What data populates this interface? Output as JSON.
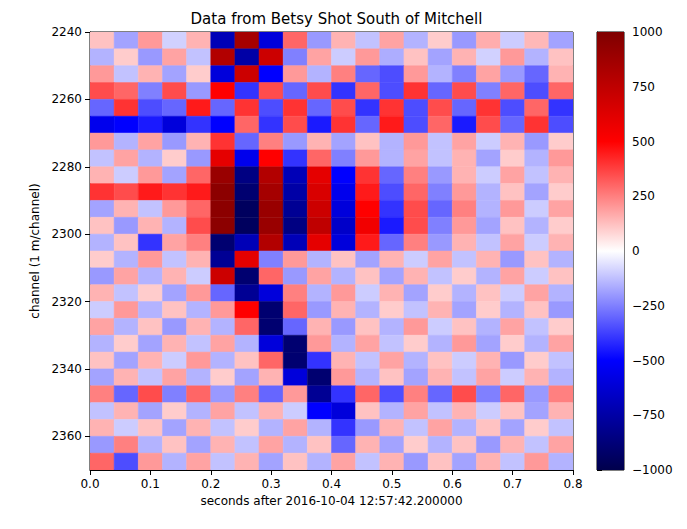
{
  "chart_data": {
    "type": "heatmap",
    "title": "Data from Betsy Shot South of Mitchell",
    "x_label": "seconds after 2016-10-04 12:57:42.200000",
    "y_label": "channel (1 m/channel)",
    "xlim": [
      0,
      0.8
    ],
    "xticks": [
      {
        "value": 0,
        "label": "0.0"
      },
      0.1,
      0.2,
      0.3,
      0.4,
      0.5,
      0.6,
      0.7,
      0.8
    ],
    "ylim": [
      2240,
      2370
    ],
    "yticks": [
      2240,
      2260,
      2280,
      2300,
      2320,
      2340,
      2360
    ],
    "x_edges": [
      0,
      0.04,
      0.08,
      0.12,
      0.16,
      0.2,
      0.24,
      0.28,
      0.32,
      0.36,
      0.4,
      0.44,
      0.48,
      0.52,
      0.56,
      0.6,
      0.64,
      0.68,
      0.72,
      0.76,
      0.8
    ],
    "channel_edges": [
      2240,
      2245,
      2250,
      2255,
      2260,
      2265,
      2270,
      2275,
      2280,
      2285,
      2290,
      2295,
      2300,
      2305,
      2310,
      2315,
      2320,
      2325,
      2330,
      2335,
      2340,
      2345,
      2350,
      2355,
      2360,
      2365,
      2370
    ],
    "values": [
      [
        120,
        -180,
        200,
        -90,
        150,
        -700,
        850,
        -600,
        300,
        -200,
        150,
        -120,
        180,
        -150,
        100,
        -200,
        160,
        -100,
        140,
        -180
      ],
      [
        -150,
        100,
        -200,
        180,
        -120,
        800,
        -750,
        700,
        -250,
        180,
        -100,
        200,
        -160,
        120,
        -180,
        150,
        -90,
        200,
        -150,
        120
      ],
      [
        200,
        -120,
        150,
        -180,
        100,
        -600,
        700,
        -500,
        200,
        -150,
        250,
        -300,
        -350,
        200,
        -150,
        -250,
        180,
        -200,
        -300,
        150
      ],
      [
        350,
        300,
        -250,
        350,
        -200,
        500,
        -400,
        350,
        -300,
        350,
        -400,
        300,
        -350,
        400,
        -300,
        350,
        -250,
        300,
        -350,
        300
      ],
      [
        -300,
        400,
        -350,
        -300,
        450,
        -300,
        400,
        -350,
        400,
        -300,
        350,
        -400,
        400,
        -350,
        350,
        -300,
        400,
        -350,
        300,
        -400
      ],
      [
        -550,
        -500,
        -450,
        -600,
        -400,
        -500,
        300,
        -400,
        350,
        -450,
        400,
        -300,
        450,
        -350,
        300,
        -450,
        350,
        -300,
        400,
        -350
      ],
      [
        200,
        -150,
        180,
        -200,
        150,
        400,
        -300,
        250,
        -200,
        150,
        -180,
        120,
        -150,
        200,
        -120,
        180,
        -100,
        150,
        -200,
        100
      ],
      [
        -120,
        180,
        -150,
        100,
        -200,
        600,
        -550,
        500,
        -400,
        300,
        -250,
        200,
        -150,
        180,
        -120,
        150,
        -180,
        100,
        -150,
        200
      ],
      [
        150,
        -100,
        200,
        -180,
        300,
        900,
        -850,
        800,
        -700,
        600,
        -500,
        400,
        -300,
        250,
        -200,
        150,
        -100,
        180,
        -120,
        150
      ],
      [
        400,
        350,
        450,
        400,
        450,
        950,
        -900,
        850,
        -750,
        650,
        -550,
        450,
        -350,
        300,
        -250,
        200,
        -150,
        120,
        -180,
        100
      ],
      [
        -180,
        150,
        -120,
        200,
        300,
        950,
        -950,
        900,
        -800,
        700,
        -600,
        500,
        -400,
        350,
        -300,
        250,
        -150,
        200,
        -100,
        180
      ],
      [
        120,
        -200,
        150,
        -150,
        350,
        950,
        -950,
        900,
        -850,
        750,
        -650,
        550,
        -450,
        350,
        -250,
        200,
        -180,
        120,
        -150,
        100
      ],
      [
        -150,
        120,
        -400,
        180,
        250,
        -900,
        -700,
        800,
        -700,
        600,
        -600,
        450,
        -300,
        250,
        -200,
        150,
        -120,
        180,
        -100,
        150
      ],
      [
        100,
        -150,
        200,
        -120,
        150,
        -800,
        600,
        -250,
        200,
        -150,
        120,
        -180,
        150,
        -100,
        180,
        -120,
        150,
        -200,
        120,
        -150
      ],
      [
        -200,
        180,
        -150,
        150,
        -100,
        700,
        -900,
        300,
        -200,
        180,
        -150,
        120,
        -180,
        150,
        -120,
        100,
        -150,
        180,
        -100,
        120
      ],
      [
        150,
        -120,
        100,
        -180,
        200,
        -300,
        -800,
        -600,
        250,
        -150,
        200,
        -100,
        150,
        -180,
        100,
        -150,
        120,
        -100,
        180,
        -150
      ],
      [
        -100,
        200,
        -150,
        120,
        -150,
        200,
        500,
        -900,
        300,
        -200,
        150,
        -150,
        100,
        -120,
        150,
        -180,
        100,
        -150,
        120,
        -200
      ],
      [
        180,
        -150,
        120,
        -200,
        150,
        -150,
        300,
        -900,
        -300,
        150,
        -200,
        120,
        -150,
        200,
        -100,
        120,
        -150,
        180,
        -120,
        100
      ],
      [
        -150,
        100,
        -180,
        150,
        -120,
        180,
        -150,
        -600,
        -900,
        200,
        -150,
        180,
        -120,
        100,
        -150,
        200,
        -180,
        100,
        -150,
        180
      ],
      [
        120,
        -180,
        150,
        -100,
        200,
        -150,
        120,
        300,
        -900,
        -400,
        150,
        -120,
        180,
        -150,
        120,
        -100,
        150,
        -200,
        100,
        -120
      ],
      [
        -180,
        150,
        -120,
        180,
        -150,
        100,
        -180,
        150,
        -600,
        -900,
        200,
        -150,
        120,
        -180,
        150,
        -120,
        180,
        -100,
        150,
        -150
      ],
      [
        250,
        -300,
        350,
        -250,
        300,
        -200,
        250,
        -300,
        200,
        -800,
        -400,
        300,
        -350,
        250,
        -300,
        350,
        -250,
        300,
        -200,
        250
      ],
      [
        -120,
        150,
        -180,
        100,
        -150,
        180,
        -120,
        150,
        -100,
        -500,
        -600,
        120,
        -150,
        180,
        -120,
        150,
        -100,
        120,
        -180,
        150
      ],
      [
        150,
        -100,
        120,
        -180,
        150,
        -120,
        100,
        -150,
        180,
        -150,
        -400,
        -200,
        150,
        -120,
        180,
        -150,
        120,
        -180,
        100,
        -120
      ],
      [
        -200,
        250,
        -150,
        120,
        -180,
        150,
        -120,
        180,
        -150,
        120,
        -300,
        150,
        -180,
        100,
        -150,
        120,
        -200,
        150,
        -120,
        180
      ],
      [
        300,
        -350,
        200,
        -150,
        180,
        -120,
        150,
        -180,
        120,
        -150,
        180,
        -120,
        150,
        -200,
        120,
        -180,
        150,
        -120,
        200,
        -150
      ]
    ],
    "colorbar": {
      "range": [
        -1000,
        1000
      ],
      "ticks": [
        {
          "value": -1000,
          "label": "−1000"
        },
        {
          "value": -750,
          "label": "−750"
        },
        {
          "value": -500,
          "label": "−500"
        },
        {
          "value": -250,
          "label": "−250"
        },
        0,
        250,
        500,
        750,
        1000
      ]
    }
  }
}
